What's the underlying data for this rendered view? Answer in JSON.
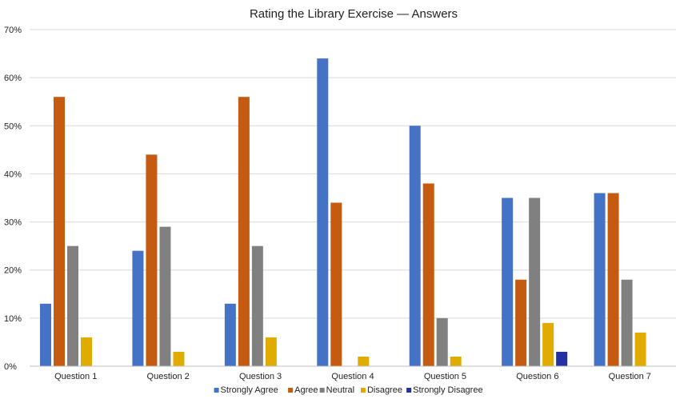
{
  "chart_data": {
    "type": "bar",
    "title": "Rating the Library Exercise — Answers",
    "xlabel": "",
    "ylabel": "",
    "ylim": [
      0,
      70
    ],
    "yticks": [
      0,
      10,
      20,
      30,
      40,
      50,
      60,
      70
    ],
    "ytick_suffix": "%",
    "grid": true,
    "legend_position": "bottom",
    "categories": [
      "Question 1",
      "Question 2",
      "Question 3",
      "Question 4",
      "Question 5",
      "Question 6",
      "Question 7"
    ],
    "series": [
      {
        "name": "Strongly Agree",
        "color": "#4472C4",
        "values": [
          13,
          24,
          13,
          64,
          50,
          35,
          36
        ]
      },
      {
        "name": "Agree",
        "color": "#C55A11",
        "values": [
          56,
          44,
          56,
          34,
          38,
          18,
          36
        ]
      },
      {
        "name": "Neutral",
        "color": "#808080",
        "values": [
          25,
          29,
          25,
          0,
          10,
          35,
          18
        ]
      },
      {
        "name": "Disagree",
        "color": "#E0AC00",
        "values": [
          6,
          3,
          6,
          2,
          2,
          9,
          7
        ]
      },
      {
        "name": "Strongly Disagree",
        "color": "#2431A0",
        "values": [
          0,
          0,
          0,
          0,
          0,
          3,
          0
        ]
      }
    ]
  }
}
